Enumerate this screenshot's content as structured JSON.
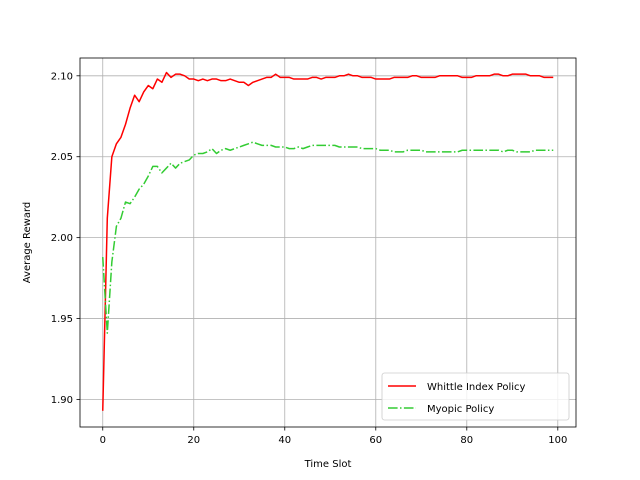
{
  "chart_data": {
    "type": "line",
    "title": "",
    "xlabel": "Time Slot",
    "ylabel": "Average Reward",
    "xlim": [
      -5,
      104
    ],
    "ylim": [
      1.883,
      2.111
    ],
    "xticks": [
      0,
      20,
      40,
      60,
      80,
      100
    ],
    "yticks": [
      1.9,
      1.95,
      2.0,
      2.05,
      2.1
    ],
    "ytick_labels": [
      "1.90",
      "1.95",
      "2.00",
      "2.05",
      "2.10"
    ],
    "grid": true,
    "legend_position": "lower-right",
    "series": [
      {
        "name": "Whittle Index Policy",
        "color": "#ff0000",
        "linestyle": "solid",
        "x": [
          0,
          1,
          2,
          3,
          4,
          5,
          6,
          7,
          8,
          9,
          10,
          11,
          12,
          13,
          14,
          15,
          16,
          17,
          18,
          19,
          20,
          21,
          22,
          23,
          24,
          25,
          26,
          27,
          28,
          29,
          30,
          31,
          32,
          33,
          34,
          35,
          36,
          37,
          38,
          39,
          40,
          41,
          42,
          43,
          44,
          45,
          46,
          47,
          48,
          49,
          50,
          51,
          52,
          53,
          54,
          55,
          56,
          57,
          58,
          59,
          60,
          61,
          62,
          63,
          64,
          65,
          66,
          67,
          68,
          69,
          70,
          71,
          72,
          73,
          74,
          75,
          76,
          77,
          78,
          79,
          80,
          81,
          82,
          83,
          84,
          85,
          86,
          87,
          88,
          89,
          90,
          91,
          92,
          93,
          94,
          95,
          96,
          97,
          98,
          99
        ],
        "values": [
          1.893,
          2.012,
          2.05,
          2.058,
          2.062,
          2.07,
          2.08,
          2.088,
          2.084,
          2.09,
          2.094,
          2.092,
          2.098,
          2.096,
          2.102,
          2.099,
          2.101,
          2.101,
          2.1,
          2.098,
          2.098,
          2.097,
          2.098,
          2.097,
          2.098,
          2.098,
          2.097,
          2.097,
          2.098,
          2.097,
          2.096,
          2.096,
          2.094,
          2.096,
          2.097,
          2.098,
          2.099,
          2.099,
          2.101,
          2.099,
          2.099,
          2.099,
          2.098,
          2.098,
          2.098,
          2.098,
          2.099,
          2.099,
          2.098,
          2.099,
          2.099,
          2.099,
          2.1,
          2.1,
          2.101,
          2.1,
          2.1,
          2.099,
          2.099,
          2.099,
          2.098,
          2.098,
          2.098,
          2.098,
          2.099,
          2.099,
          2.099,
          2.099,
          2.1,
          2.1,
          2.099,
          2.099,
          2.099,
          2.099,
          2.1,
          2.1,
          2.1,
          2.1,
          2.1,
          2.099,
          2.099,
          2.099,
          2.1,
          2.1,
          2.1,
          2.1,
          2.101,
          2.101,
          2.1,
          2.1,
          2.101,
          2.101,
          2.101,
          2.101,
          2.1,
          2.1,
          2.1,
          2.099,
          2.099,
          2.099
        ]
      },
      {
        "name": "Myopic Policy",
        "color": "#33cc33",
        "linestyle": "dashdot",
        "x": [
          0,
          1,
          2,
          3,
          4,
          5,
          6,
          7,
          8,
          9,
          10,
          11,
          12,
          13,
          14,
          15,
          16,
          17,
          18,
          19,
          20,
          21,
          22,
          23,
          24,
          25,
          26,
          27,
          28,
          29,
          30,
          31,
          32,
          33,
          34,
          35,
          36,
          37,
          38,
          39,
          40,
          41,
          42,
          43,
          44,
          45,
          46,
          47,
          48,
          49,
          50,
          51,
          52,
          53,
          54,
          55,
          56,
          57,
          58,
          59,
          60,
          61,
          62,
          63,
          64,
          65,
          66,
          67,
          68,
          69,
          70,
          71,
          72,
          73,
          74,
          75,
          76,
          77,
          78,
          79,
          80,
          81,
          82,
          83,
          84,
          85,
          86,
          87,
          88,
          89,
          90,
          91,
          92,
          93,
          94,
          95,
          96,
          97,
          98,
          99
        ],
        "values": [
          1.988,
          1.941,
          1.985,
          2.007,
          2.012,
          2.022,
          2.021,
          2.025,
          2.03,
          2.033,
          2.038,
          2.044,
          2.044,
          2.04,
          2.043,
          2.046,
          2.043,
          2.046,
          2.047,
          2.048,
          2.051,
          2.052,
          2.052,
          2.053,
          2.055,
          2.052,
          2.054,
          2.055,
          2.054,
          2.055,
          2.056,
          2.057,
          2.058,
          2.059,
          2.058,
          2.057,
          2.057,
          2.057,
          2.056,
          2.056,
          2.056,
          2.055,
          2.055,
          2.056,
          2.055,
          2.056,
          2.057,
          2.057,
          2.057,
          2.057,
          2.057,
          2.057,
          2.056,
          2.056,
          2.056,
          2.056,
          2.056,
          2.055,
          2.055,
          2.055,
          2.055,
          2.054,
          2.054,
          2.054,
          2.053,
          2.053,
          2.053,
          2.054,
          2.054,
          2.054,
          2.054,
          2.053,
          2.053,
          2.053,
          2.053,
          2.053,
          2.053,
          2.053,
          2.053,
          2.054,
          2.054,
          2.054,
          2.054,
          2.054,
          2.054,
          2.054,
          2.054,
          2.054,
          2.053,
          2.054,
          2.054,
          2.053,
          2.053,
          2.053,
          2.053,
          2.054,
          2.054,
          2.054,
          2.054,
          2.054
        ]
      }
    ]
  }
}
